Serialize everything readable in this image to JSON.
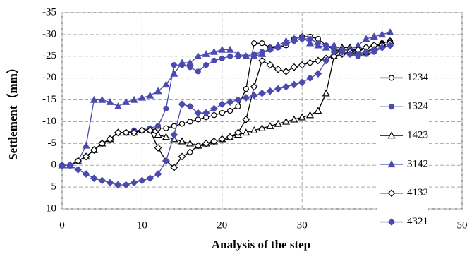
{
  "chart_data": {
    "type": "line",
    "x_label": "Analysis of the step",
    "y_label": "Settlement（mm）",
    "xlim": [
      0,
      50
    ],
    "xticks": [
      0,
      10,
      20,
      30,
      40,
      50
    ],
    "ylim": [
      10,
      -35
    ],
    "yticks": [
      -35,
      -30,
      -25,
      -20,
      -15,
      -10,
      -5,
      0,
      5,
      10
    ],
    "grid": true,
    "legend": "right",
    "x": [
      0,
      1,
      2,
      3,
      4,
      5,
      6,
      7,
      8,
      9,
      10,
      11,
      12,
      13,
      14,
      15,
      16,
      17,
      18,
      19,
      20,
      21,
      22,
      23,
      24,
      25,
      26,
      27,
      28,
      29,
      30,
      31,
      32,
      33,
      34,
      35,
      36,
      37,
      38,
      39,
      40,
      41
    ],
    "series": [
      {
        "name": "1234",
        "color": "#000000",
        "marker": "circle-open",
        "values": [
          0,
          0,
          -1,
          -2,
          -3.5,
          -5,
          -6,
          -7.5,
          -7.5,
          -7.5,
          -8,
          -8,
          -8.5,
          -8.5,
          -9,
          -9.5,
          -10,
          -10.5,
          -11,
          -11.5,
          -12,
          -12.5,
          -13.5,
          -17.5,
          -28,
          -28,
          -27,
          -27,
          -27.5,
          -29,
          -29.5,
          -29.5,
          -29,
          -27.5,
          -26.5,
          -26,
          -25.5,
          -26,
          -27,
          -27.5,
          -28,
          -28.5
        ]
      },
      {
        "name": "1324",
        "color": "#4a4ab0",
        "marker": "circle",
        "values": [
          0,
          0,
          -1,
          -2,
          -3.5,
          -5,
          -6,
          -7.5,
          -7.5,
          -8,
          -8,
          -8.5,
          -9,
          -13,
          -23,
          -23,
          -22.5,
          -21.5,
          -23,
          -24,
          -24.5,
          -25,
          -25,
          -25,
          -25.5,
          -26,
          -26.5,
          -27,
          -28,
          -28.5,
          -29,
          -29,
          -28,
          -27.5,
          -27,
          -26,
          -25.5,
          -25,
          -25.5,
          -26,
          -27,
          -27.5
        ]
      },
      {
        "name": "1423",
        "color": "#000000",
        "marker": "triangle-open",
        "values": [
          0,
          0,
          -1,
          -2,
          -3.5,
          -5,
          -6,
          -7.5,
          -7.5,
          -7.5,
          -8,
          -8,
          -7,
          -6.5,
          -6,
          -5.5,
          -5,
          -4.5,
          -5,
          -5.5,
          -6,
          -6.5,
          -7,
          -7.5,
          -8,
          -8.5,
          -9,
          -9.5,
          -10,
          -10.5,
          -11,
          -11.5,
          -12.5,
          -16.5,
          -25,
          -27,
          -27,
          -26,
          -26,
          -27,
          -28,
          -28.5
        ]
      },
      {
        "name": "3142",
        "color": "#4a4ab0",
        "marker": "triangle",
        "values": [
          0,
          0,
          -1,
          -4.5,
          -15,
          -15,
          -14.5,
          -13.5,
          -14.5,
          -15,
          -15.5,
          -16,
          -17,
          -18.5,
          -21,
          -23.5,
          -23.5,
          -25,
          -25.5,
          -26,
          -26.5,
          -26.5,
          -25.5,
          -25,
          -25,
          -25.5,
          -27,
          -27.5,
          -28.5,
          -29,
          -29.5,
          -28,
          -27.5,
          -27,
          -27.5,
          -26.5,
          -26.5,
          -27.5,
          -29,
          -29.5,
          -30,
          -30.5
        ]
      },
      {
        "name": "4132",
        "color": "#000000",
        "marker": "diamond-open",
        "values": [
          0,
          0,
          -1,
          -2,
          -3.5,
          -5,
          -6,
          -7.5,
          -7.5,
          -7.5,
          -8,
          -8,
          -4,
          -1,
          0.5,
          -2,
          -3,
          -4.5,
          -5,
          -5.5,
          -6,
          -6.5,
          -7.5,
          -10.5,
          -18,
          -24,
          -23,
          -22,
          -21.5,
          -22.5,
          -23,
          -23.5,
          -24,
          -24.5,
          -25,
          -25.5,
          -26,
          -26.5,
          -27,
          -27.5,
          -27.5,
          -28
        ]
      },
      {
        "name": "4321",
        "color": "#4a4ab0",
        "marker": "diamond",
        "values": [
          0,
          0,
          1,
          2,
          3,
          3.5,
          4,
          4.5,
          4.5,
          4,
          3.5,
          3,
          2,
          -1,
          -7,
          -14,
          -13.5,
          -12,
          -12,
          -13,
          -14,
          -14.5,
          -15,
          -15.5,
          -16,
          -16.5,
          -17,
          -17.5,
          -18,
          -18.5,
          -19,
          -20,
          -21,
          -24,
          -26,
          -26,
          -25.5,
          -25.5,
          -26,
          -26.5,
          -27,
          -27.5
        ]
      }
    ]
  }
}
